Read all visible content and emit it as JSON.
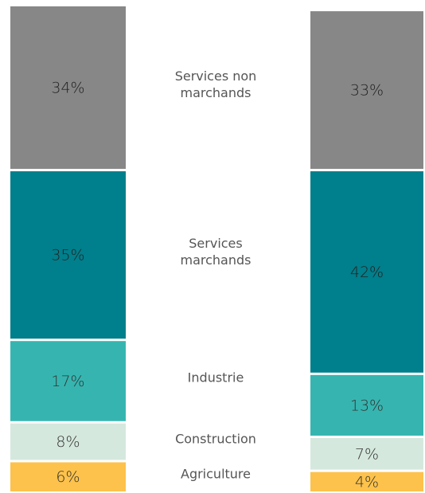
{
  "chart_data": {
    "type": "bar",
    "stacked": true,
    "categories": [
      null,
      null
    ],
    "ylim": [
      0,
      100
    ],
    "series": [
      {
        "name": "Agriculture",
        "color": "#fdc24b",
        "values": [
          6,
          4
        ],
        "value_labels": [
          "6%",
          "4%"
        ]
      },
      {
        "name": "Construction",
        "color": "#d5e8de",
        "values": [
          8,
          7
        ],
        "value_labels": [
          "8%",
          "7%"
        ]
      },
      {
        "name": "Industrie",
        "color": "#36b5b0",
        "values": [
          17,
          13
        ],
        "value_labels": [
          "17%",
          "13%"
        ]
      },
      {
        "name": "Services marchands",
        "color": "#007f8c",
        "values": [
          35,
          42
        ],
        "value_labels": [
          "35%",
          "42%"
        ]
      },
      {
        "name": "Services non marchands",
        "color": "#878787",
        "values": [
          34,
          33
        ],
        "value_labels": [
          "34%",
          "33%"
        ]
      }
    ]
  }
}
